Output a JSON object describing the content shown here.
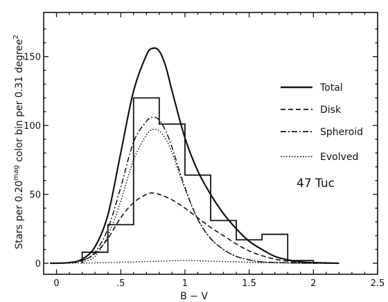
{
  "chart_data": {
    "type": "line",
    "title": "",
    "xlabel": "B − V",
    "ylabel": "Stars per 0.20",
    "ylabel_sup": "mag",
    "ylabel_rest": " color bin per 0.31 degree",
    "ylabel_sup2": "2",
    "xlim": [
      -0.1,
      2.5
    ],
    "ylim": [
      -8,
      182
    ],
    "x_ticks": [
      {
        "value": 0,
        "label": "0"
      },
      {
        "value": 0.5,
        "label": ".5"
      },
      {
        "value": 1.0,
        "label": "1"
      },
      {
        "value": 1.5,
        "label": "1.5"
      },
      {
        "value": 2.0,
        "label": "2"
      },
      {
        "value": 2.5,
        "label": "2.5"
      }
    ],
    "y_ticks": [
      {
        "value": 0,
        "label": "0"
      },
      {
        "value": 50,
        "label": "50"
      },
      {
        "value": 100,
        "label": "100"
      },
      {
        "value": 150,
        "label": "150"
      }
    ],
    "grid": false,
    "legend_position": "right",
    "annotation": "47 Tuc",
    "histogram": {
      "bin_edges": [
        0.2,
        0.4,
        0.6,
        0.8,
        1.0,
        1.2,
        1.4,
        1.6,
        1.8,
        2.0
      ],
      "counts": [
        8,
        28,
        120,
        101,
        64,
        31,
        17,
        21,
        2
      ]
    },
    "series": [
      {
        "name": "Total",
        "style": "solid",
        "x": [
          -0.05,
          0.1,
          0.2,
          0.3,
          0.4,
          0.5,
          0.6,
          0.7,
          0.75,
          0.8,
          0.85,
          0.9,
          1.0,
          1.1,
          1.2,
          1.3,
          1.4,
          1.5,
          1.6,
          1.7,
          1.8,
          1.9,
          2.0,
          2.2
        ],
        "y": [
          0,
          0.5,
          3,
          12,
          35,
          80,
          125,
          151,
          156,
          154,
          143,
          125,
          91,
          67,
          50,
          36,
          25,
          16,
          10,
          5,
          2.5,
          1,
          0.5,
          0
        ]
      },
      {
        "name": "Disk",
        "style": "dashed",
        "x": [
          -0.05,
          0.1,
          0.2,
          0.3,
          0.4,
          0.5,
          0.6,
          0.7,
          0.75,
          0.8,
          0.9,
          1.0,
          1.1,
          1.2,
          1.3,
          1.4,
          1.5,
          1.6,
          1.7,
          1.8,
          1.9,
          2.0,
          2.2
        ],
        "y": [
          0,
          0.3,
          2,
          7,
          18,
          33,
          44,
          50,
          51,
          50,
          46,
          40,
          33,
          26,
          20,
          14,
          9,
          5.5,
          3,
          1.5,
          0.7,
          0.3,
          0
        ]
      },
      {
        "name": "Spheroid",
        "style": "dashdot",
        "x": [
          -0.05,
          0.1,
          0.2,
          0.3,
          0.4,
          0.5,
          0.6,
          0.7,
          0.75,
          0.8,
          0.85,
          0.9,
          1.0,
          1.1,
          1.2,
          1.3,
          1.4,
          1.5,
          1.6,
          1.8,
          2.0,
          2.2
        ],
        "y": [
          0,
          0.3,
          2,
          8,
          25,
          55,
          88,
          103,
          106,
          104,
          96,
          84,
          55,
          32,
          18,
          10,
          5,
          2.5,
          1,
          0.3,
          0,
          0
        ]
      },
      {
        "name": "Evolved",
        "style": "dotted",
        "x": [
          -0.05,
          0.2,
          0.4,
          0.6,
          0.8,
          1.0,
          1.2,
          1.4,
          1.6,
          1.8,
          2.0,
          2.2
        ],
        "y": [
          0,
          0.2,
          0.5,
          1,
          1.5,
          2,
          1.5,
          1,
          0.5,
          0.3,
          0.1,
          0
        ]
      },
      {
        "name": "",
        "style": "dotted",
        "x": [
          0.2,
          0.3,
          0.4,
          0.5,
          0.6,
          0.7,
          0.75,
          0.8,
          0.85,
          0.9,
          1.0,
          1.1,
          1.2,
          1.3,
          1.4,
          1.5,
          1.6,
          1.8,
          2.0
        ],
        "y": [
          1,
          5,
          20,
          45,
          75,
          93,
          97,
          96,
          90,
          80,
          54,
          32,
          18,
          10,
          5,
          2.5,
          1,
          0.3,
          0
        ]
      }
    ]
  }
}
